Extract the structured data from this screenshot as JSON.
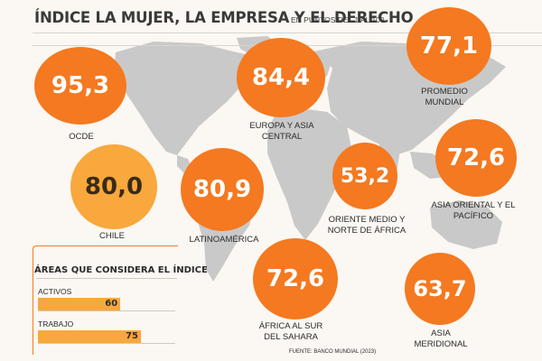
{
  "chart_data": {
    "type": "bubble-map",
    "title": "ÍNDICE LA MUJER, LA EMPRESA Y EL DERECHO",
    "subtitle": "EN PUNTOS DEL 1 AL 100",
    "regions": [
      {
        "name": "OCDE",
        "value": "95,3",
        "highlight": false
      },
      {
        "name": "EUROPA Y ASIA CENTRAL",
        "value": "84,4",
        "highlight": false
      },
      {
        "name": "PROMEDIO MUNDIAL",
        "value": "77,1",
        "highlight": false
      },
      {
        "name": "CHILE",
        "value": "80,0",
        "highlight": true
      },
      {
        "name": "LATINOAMÉRICA",
        "value": "80,9",
        "highlight": false
      },
      {
        "name": "ORIENTE MEDIO Y NORTE DE ÁFRICA",
        "value": "53,2",
        "highlight": false
      },
      {
        "name": "ASIA ORIENTAL Y EL PACÍFICO",
        "value": "72,6",
        "highlight": false
      },
      {
        "name": "ÁFRICA AL SUR DEL SAHARA",
        "value": "72,6",
        "highlight": false
      },
      {
        "name": "ASIA MERIDIONAL",
        "value": "63,7",
        "highlight": false
      }
    ],
    "areas": {
      "title": "ÁREAS QUE CONSIDERA EL ÍNDICE",
      "max": 100,
      "items": [
        {
          "label": "ACTIVOS",
          "value": 60
        },
        {
          "label": "TRABAJO",
          "value": 75
        }
      ]
    },
    "source": "FUENTE: BANCO MUNDIAL (2023)",
    "colors": {
      "bubble": "#f47920",
      "highlight": "#f8a83c",
      "map": "#c9c9c9"
    }
  }
}
